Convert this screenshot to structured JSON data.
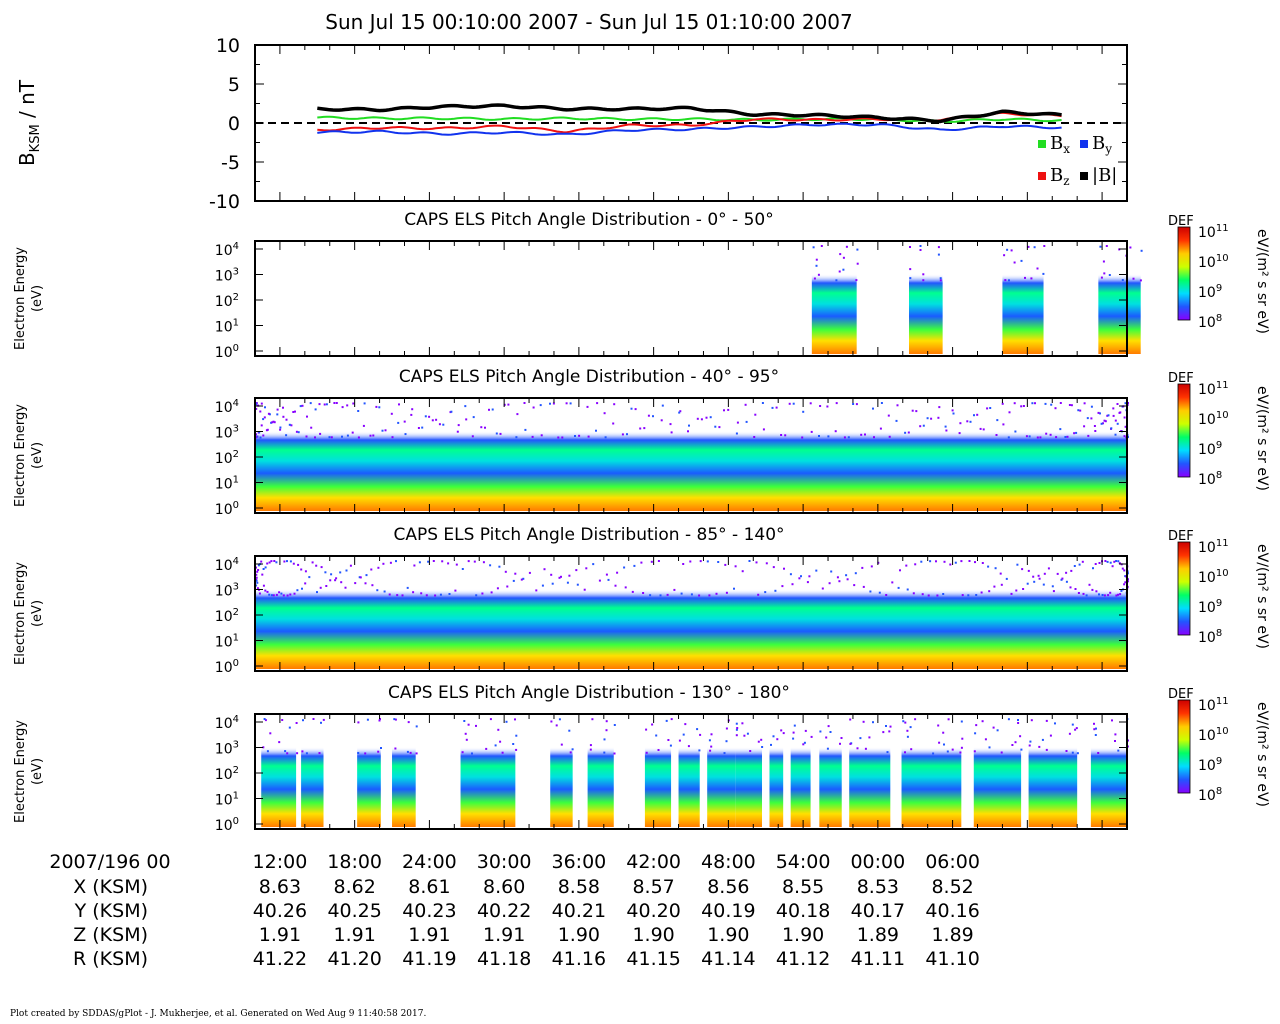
{
  "header": {
    "title": "Sun Jul 15 00:10:00 2007 - Sun Jul 15 01:10:00 2007"
  },
  "footer": {
    "credit": "Plot created by SDDAS/gPlot - J. Mukherjee, et al.  Generated on Wed Aug 9 11:40:58 2017."
  },
  "colors": {
    "bx": "#22dd22",
    "by": "#1133ee",
    "bz": "#ee1111",
    "bmag": "#000000",
    "colorbar": [
      "#8800ff",
      "#2255ff",
      "#00ddff",
      "#00ff66",
      "#ccff00",
      "#ffcc00",
      "#ff3300",
      "#cc0000"
    ]
  },
  "chart_data": [
    {
      "type": "line",
      "ylabel": "B",
      "ylabel_sub": "KSM",
      "ylabel_unit": " / nT",
      "ylim": [
        -10,
        10
      ],
      "yticks": [
        10,
        5,
        0,
        -5,
        -10
      ],
      "yticklabels": [
        "10",
        "5",
        "0",
        "-5",
        "-10"
      ],
      "zero_line": "dashed",
      "legend": [
        {
          "key": "bx",
          "base": "B",
          "sub": "x"
        },
        {
          "key": "by",
          "base": "B",
          "sub": "y"
        },
        {
          "key": "bz",
          "base": "B",
          "sub": "z"
        },
        {
          "key": "bmag",
          "base": "|B|",
          "sub": ""
        }
      ],
      "legend_position": "bottom-right",
      "x_minutes": [
        0,
        5,
        10,
        15,
        20,
        25,
        30,
        35,
        40,
        45,
        50,
        55,
        60
      ],
      "series": [
        {
          "key": "bx",
          "values": [
            0.7,
            0.6,
            0.6,
            0.5,
            0.6,
            0.5,
            0.5,
            0.4,
            0.5,
            0.5,
            0.2,
            0.5,
            0.3
          ]
        },
        {
          "key": "by",
          "values": [
            -1.2,
            -1.1,
            -1.4,
            -1.2,
            -1.5,
            -0.9,
            -0.8,
            -0.5,
            -0.2,
            -0.2,
            -0.9,
            -0.4,
            -0.6
          ]
        },
        {
          "key": "bz",
          "values": [
            -0.9,
            -0.6,
            -0.7,
            -0.4,
            -1.1,
            -0.3,
            -0.3,
            0.5,
            0.4,
            0.5,
            0.4,
            1.2,
            0.9
          ]
        },
        {
          "key": "bmag",
          "values": [
            1.8,
            1.7,
            2.1,
            2.2,
            1.8,
            1.8,
            1.9,
            1.1,
            1.0,
            0.7,
            0.3,
            1.4,
            1.0
          ]
        }
      ]
    },
    {
      "type": "heatmap",
      "title": "CAPS ELS Pitch Angle Distribution - 0° - 50°",
      "ylabel": [
        "Electron Energy",
        "(eV)"
      ],
      "yexp": [
        "4",
        "3",
        "2",
        "1",
        "0"
      ],
      "colorbar": {
        "label": "DEF",
        "unit": "eV/(m² s sr eV)",
        "exps": [
          "11",
          "10",
          "9",
          "8"
        ]
      },
      "coverage_min": [
        [
          44.7,
          48.3
        ],
        [
          52.5,
          55.2
        ],
        [
          60.0,
          63.3
        ],
        [
          67.7,
          71.1
        ]
      ]
    },
    {
      "type": "heatmap",
      "title": "CAPS ELS Pitch Angle Distribution - 40° - 95°",
      "ylabel": [
        "Electron Energy",
        "(eV)"
      ],
      "yexp": [
        "4",
        "3",
        "2",
        "1",
        "0"
      ],
      "colorbar": {
        "label": "DEF",
        "unit": "eV/(m² s sr eV)",
        "exps": [
          "11",
          "10",
          "9",
          "8"
        ]
      },
      "coverage_min": [
        [
          0,
          70
        ]
      ]
    },
    {
      "type": "heatmap",
      "title": "CAPS ELS Pitch Angle Distribution - 85° - 140°",
      "ylabel": [
        "Electron Energy",
        "(eV)"
      ],
      "yexp": [
        "4",
        "3",
        "2",
        "1",
        "0"
      ],
      "colorbar": {
        "label": "DEF",
        "unit": "eV/(m² s sr eV)",
        "exps": [
          "11",
          "10",
          "9",
          "8"
        ]
      },
      "coverage_min": [
        [
          0,
          70
        ]
      ]
    },
    {
      "type": "heatmap",
      "title": "CAPS ELS Pitch Angle Distribution - 130° - 180°",
      "ylabel": [
        "Electron Energy",
        "(eV)"
      ],
      "yexp": [
        "4",
        "3",
        "2",
        "1",
        "0"
      ],
      "colorbar": {
        "label": "DEF",
        "unit": "eV/(m² s sr eV)",
        "exps": [
          "11",
          "10",
          "9",
          "8"
        ]
      },
      "coverage_min": [
        [
          0.5,
          3.3
        ],
        [
          3.7,
          5.5
        ],
        [
          8.2,
          10.1
        ],
        [
          11.0,
          12.9
        ],
        [
          16.5,
          20.9
        ],
        [
          23.7,
          25.5
        ],
        [
          26.7,
          28.8
        ],
        [
          31.3,
          33.4
        ],
        [
          34.0,
          35.7
        ],
        [
          36.3,
          38.6
        ],
        [
          38.6,
          40.7
        ],
        [
          41.3,
          42.4
        ],
        [
          43.0,
          44.6
        ],
        [
          45.3,
          47.1
        ],
        [
          47.7,
          51.0
        ],
        [
          51.9,
          56.7
        ],
        [
          57.7,
          61.5
        ],
        [
          62.1,
          66.0
        ],
        [
          67.1,
          70.0
        ]
      ]
    }
  ],
  "ephemeris": {
    "time_label": "2007/196 00",
    "times": [
      "12:00",
      "18:00",
      "24:00",
      "30:00",
      "36:00",
      "42:00",
      "48:00",
      "54:00",
      "00:00",
      "06:00"
    ],
    "rows": [
      {
        "label": "X (KSM)",
        "values": [
          "8.63",
          "8.62",
          "8.61",
          "8.60",
          "8.58",
          "8.57",
          "8.56",
          "8.55",
          "8.53",
          "8.52"
        ]
      },
      {
        "label": "Y (KSM)",
        "values": [
          "40.26",
          "40.25",
          "40.23",
          "40.22",
          "40.21",
          "40.20",
          "40.19",
          "40.18",
          "40.17",
          "40.16"
        ]
      },
      {
        "label": "Z (KSM)",
        "values": [
          "1.91",
          "1.91",
          "1.91",
          "1.91",
          "1.90",
          "1.90",
          "1.90",
          "1.90",
          "1.89",
          "1.89"
        ]
      },
      {
        "label": "R (KSM)",
        "values": [
          "41.22",
          "41.20",
          "41.19",
          "41.18",
          "41.16",
          "41.15",
          "41.14",
          "41.12",
          "41.11",
          "41.10"
        ]
      }
    ]
  }
}
